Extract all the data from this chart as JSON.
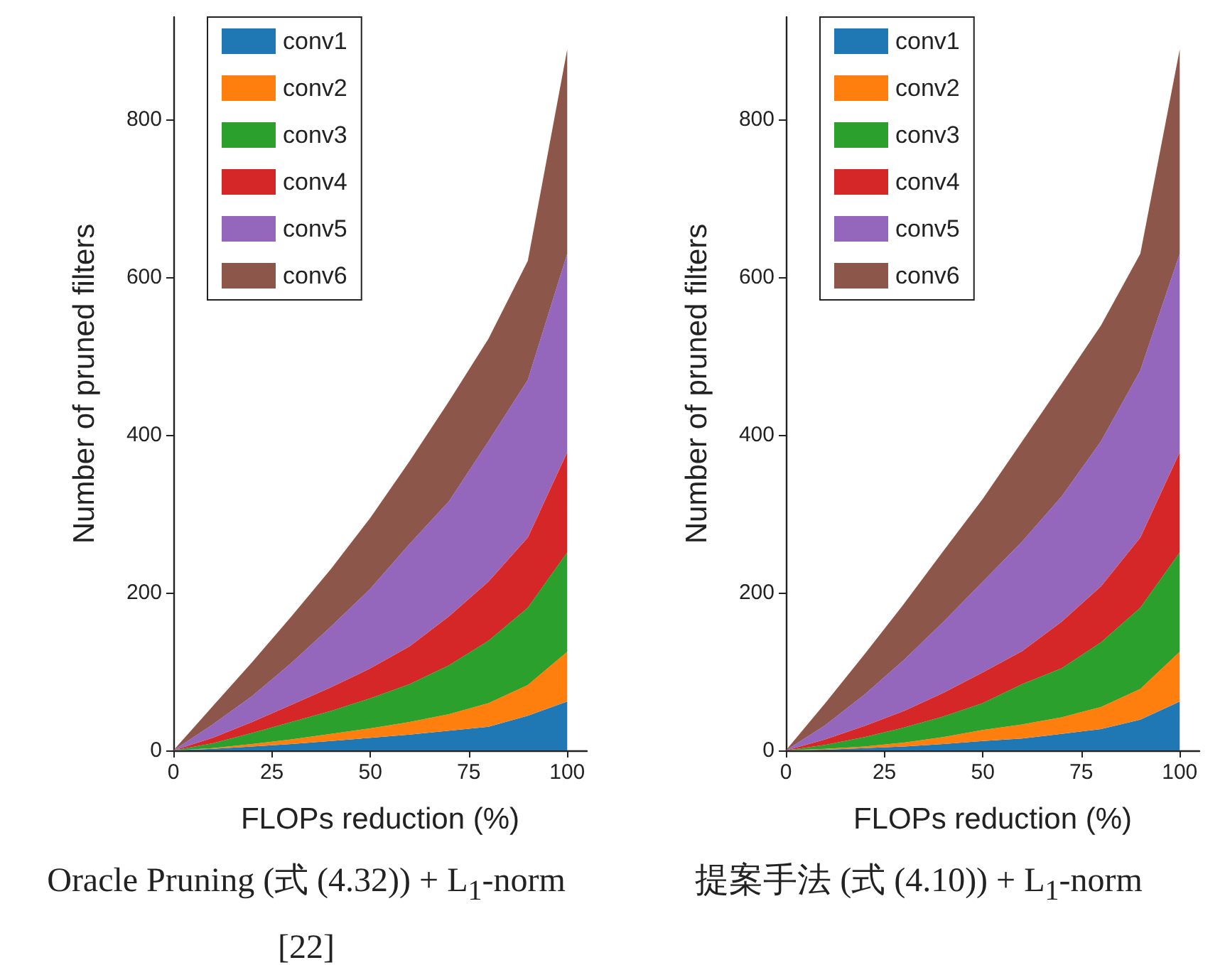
{
  "chart_data": [
    {
      "type": "area",
      "stacked": true,
      "x": [
        0,
        10,
        20,
        30,
        40,
        50,
        60,
        70,
        80,
        90,
        100
      ],
      "xlim": [
        0,
        105
      ],
      "xticks": [
        0,
        25,
        50,
        75,
        100
      ],
      "ylim": [
        0,
        930
      ],
      "yticks": [
        0,
        200,
        400,
        600,
        800
      ],
      "xlabel": "FLOPs reduction (%)",
      "ylabel": "Number of pruned filters",
      "legend": "top left",
      "grid": false,
      "annotations": [
        "Oracle Pruning (式 (4.32)) + L$_{1}$-norm [22]"
      ],
      "series": [
        {
          "name": "conv1",
          "color": "#1f77b4",
          "values": [
            0,
            2,
            5,
            8,
            12,
            16,
            20,
            25,
            30,
            44,
            62
          ]
        },
        {
          "name": "conv2",
          "color": "#ff7f0e",
          "values": [
            0,
            1,
            3,
            6,
            9,
            12,
            16,
            21,
            30,
            39,
            63
          ]
        },
        {
          "name": "conv3",
          "color": "#2ca02c",
          "values": [
            0,
            6,
            14,
            22,
            29,
            38,
            48,
            62,
            79,
            98,
            126
          ]
        },
        {
          "name": "conv4",
          "color": "#d62728",
          "values": [
            0,
            7,
            14,
            22,
            30,
            38,
            48,
            62,
            75,
            89,
            127
          ]
        },
        {
          "name": "conv5",
          "color": "#9467bd",
          "values": [
            0,
            17,
            33,
            53,
            77,
            101,
            130,
            146,
            178,
            200,
            252
          ]
        },
        {
          "name": "conv6",
          "color": "#8c564b",
          "values": [
            0,
            23,
            43,
            59,
            73,
            90,
            105,
            127,
            130,
            151,
            259
          ]
        }
      ]
    },
    {
      "type": "area",
      "stacked": true,
      "x": [
        0,
        10,
        20,
        30,
        40,
        50,
        60,
        70,
        80,
        90,
        100
      ],
      "xlim": [
        0,
        105
      ],
      "xticks": [
        0,
        25,
        50,
        75,
        100
      ],
      "ylim": [
        0,
        930
      ],
      "yticks": [
        0,
        200,
        400,
        600,
        800
      ],
      "xlabel": "FLOPs reduction (%)",
      "ylabel": "Number of pruned filters",
      "legend": "top left",
      "grid": false,
      "annotations": [
        "提案手法 (式 (4.10)) + L$_{1}$-norm"
      ],
      "series": [
        {
          "name": "conv1",
          "color": "#1f77b4",
          "values": [
            0,
            1,
            3,
            5,
            8,
            12,
            15,
            21,
            27,
            39,
            62
          ]
        },
        {
          "name": "conv2",
          "color": "#ff7f0e",
          "values": [
            0,
            1,
            2,
            5,
            9,
            14,
            18,
            21,
            28,
            39,
            63
          ]
        },
        {
          "name": "conv3",
          "color": "#2ca02c",
          "values": [
            0,
            5,
            12,
            19,
            26,
            34,
            51,
            62,
            82,
            103,
            126
          ]
        },
        {
          "name": "conv4",
          "color": "#d62728",
          "values": [
            0,
            7,
            14,
            21,
            30,
            39,
            42,
            59,
            71,
            89,
            127
          ]
        },
        {
          "name": "conv5",
          "color": "#9467bd",
          "values": [
            0,
            18,
            40,
            65,
            90,
            115,
            139,
            159,
            184,
            212,
            252
          ]
        },
        {
          "name": "conv6",
          "color": "#8c564b",
          "values": [
            0,
            28,
            51,
            71,
            90,
            105,
            127,
            143,
            147,
            148,
            259
          ]
        }
      ]
    }
  ]
}
